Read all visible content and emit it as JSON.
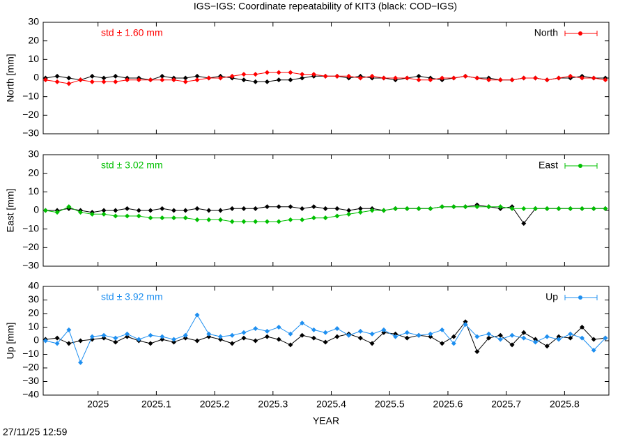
{
  "footer": "27/11/25 12:59",
  "chart_data": [
    {
      "type": "line",
      "title": "IGS−IGS: Coordinate repeatability of KIT3 (black: COD−IGS)",
      "ylabel": "North [mm]",
      "annotation": "std ± 1.60 mm",
      "legend": "top-right",
      "grid": false,
      "xlim": [
        2024.906,
        2025.876
      ],
      "xticks": [
        2025,
        2025.1,
        2025.2,
        2025.3,
        2025.4,
        2025.5,
        2025.6,
        2025.7,
        2025.8
      ],
      "ylim": [
        -30,
        30
      ],
      "yticks": [
        {
          "value": -30,
          "label": "−30"
        },
        {
          "value": -20,
          "label": "−20"
        },
        {
          "value": -10,
          "label": "−10"
        },
        0,
        10,
        20,
        30
      ],
      "x": [
        2024.91,
        2024.93,
        2024.95,
        2024.97,
        2024.99,
        2025.01,
        2025.03,
        2025.05,
        2025.07,
        2025.09,
        2025.11,
        2025.13,
        2025.15,
        2025.17,
        2025.19,
        2025.21,
        2025.23,
        2025.25,
        2025.27,
        2025.29,
        2025.31,
        2025.33,
        2025.35,
        2025.37,
        2025.39,
        2025.41,
        2025.43,
        2025.45,
        2025.47,
        2025.49,
        2025.51,
        2025.53,
        2025.55,
        2025.57,
        2025.59,
        2025.61,
        2025.63,
        2025.65,
        2025.67,
        2025.69,
        2025.71,
        2025.73,
        2025.75,
        2025.77,
        2025.79,
        2025.81,
        2025.83,
        2025.85,
        2025.87
      ],
      "series": [
        {
          "color": "#000000",
          "values": [
            0,
            1,
            0,
            -1,
            1,
            0,
            1,
            0,
            0,
            -1,
            1,
            0,
            0,
            1,
            0,
            1,
            0,
            -1,
            -2,
            -2,
            -1,
            -1,
            0,
            1,
            1,
            1,
            0,
            1,
            0,
            0,
            -1,
            0,
            1,
            0,
            -1,
            0,
            1,
            0,
            0,
            -1,
            -1,
            0,
            0,
            -1,
            0,
            0,
            1,
            0,
            0
          ]
        },
        {
          "name": "North",
          "color": "#ff0000",
          "values": [
            -1,
            -2,
            -3,
            -1,
            -2,
            -2,
            -2,
            -1,
            -1,
            -1,
            -1,
            -1,
            -2,
            -1,
            0,
            0,
            1,
            2,
            2,
            3,
            3,
            3,
            2,
            2,
            1,
            1,
            1,
            0,
            1,
            0,
            0,
            0,
            -1,
            -1,
            0,
            0,
            1,
            0,
            -1,
            -1,
            -1,
            0,
            0,
            -1,
            0,
            1,
            0,
            0,
            -1
          ]
        }
      ]
    },
    {
      "type": "line",
      "ylabel": "East [mm]",
      "annotation": "std ± 3.02 mm",
      "legend": "top-right",
      "grid": false,
      "xlim": [
        2024.906,
        2025.876
      ],
      "xticks": [
        2025,
        2025.1,
        2025.2,
        2025.3,
        2025.4,
        2025.5,
        2025.6,
        2025.7,
        2025.8
      ],
      "ylim": [
        -30,
        30
      ],
      "yticks": [
        {
          "value": -30,
          "label": "−30"
        },
        {
          "value": -20,
          "label": "−20"
        },
        {
          "value": -10,
          "label": "−10"
        },
        0,
        10,
        20,
        30
      ],
      "x": [
        2024.91,
        2024.93,
        2024.95,
        2024.97,
        2024.99,
        2025.01,
        2025.03,
        2025.05,
        2025.07,
        2025.09,
        2025.11,
        2025.13,
        2025.15,
        2025.17,
        2025.19,
        2025.21,
        2025.23,
        2025.25,
        2025.27,
        2025.29,
        2025.31,
        2025.33,
        2025.35,
        2025.37,
        2025.39,
        2025.41,
        2025.43,
        2025.45,
        2025.47,
        2025.49,
        2025.51,
        2025.53,
        2025.55,
        2025.57,
        2025.59,
        2025.61,
        2025.63,
        2025.65,
        2025.67,
        2025.69,
        2025.71,
        2025.73,
        2025.75,
        2025.77,
        2025.79,
        2025.81,
        2025.83,
        2025.85,
        2025.87
      ],
      "series": [
        {
          "color": "#000000",
          "values": [
            0,
            0,
            1,
            0,
            -1,
            0,
            0,
            1,
            0,
            0,
            1,
            0,
            0,
            1,
            0,
            0,
            1,
            1,
            1,
            2,
            2,
            2,
            1,
            2,
            1,
            1,
            0,
            1,
            1,
            0,
            1,
            1,
            1,
            1,
            2,
            2,
            2,
            3,
            2,
            1,
            2,
            -7,
            1,
            1,
            1,
            1,
            1,
            1,
            1
          ]
        },
        {
          "name": "East",
          "color": "#00c000",
          "values": [
            0,
            -1,
            2,
            -1,
            -2,
            -2,
            -3,
            -3,
            -3,
            -4,
            -4,
            -4,
            -4,
            -5,
            -5,
            -5,
            -6,
            -6,
            -6,
            -6,
            -6,
            -5,
            -5,
            -4,
            -4,
            -3,
            -2,
            -1,
            0,
            0,
            1,
            1,
            1,
            1,
            2,
            2,
            2,
            2,
            2,
            2,
            1,
            1,
            1,
            1,
            1,
            1,
            1,
            1,
            1
          ]
        }
      ]
    },
    {
      "type": "line",
      "ylabel": "Up [mm]",
      "xlabel": "YEAR",
      "annotation": "std ± 3.92 mm",
      "legend": "top-right",
      "grid": false,
      "xlim": [
        2024.906,
        2025.876
      ],
      "xticks": [
        2025,
        2025.1,
        2025.2,
        2025.3,
        2025.4,
        2025.5,
        2025.6,
        2025.7,
        2025.8
      ],
      "ylim": [
        -40,
        40
      ],
      "yticks": [
        {
          "value": -40,
          "label": "−40"
        },
        {
          "value": -30,
          "label": "−30"
        },
        {
          "value": -20,
          "label": "−20"
        },
        {
          "value": -10,
          "label": "−10"
        },
        0,
        10,
        20,
        30,
        40
      ],
      "x": [
        2024.91,
        2024.93,
        2024.95,
        2024.97,
        2024.99,
        2025.01,
        2025.03,
        2025.05,
        2025.07,
        2025.09,
        2025.11,
        2025.13,
        2025.15,
        2025.17,
        2025.19,
        2025.21,
        2025.23,
        2025.25,
        2025.27,
        2025.29,
        2025.31,
        2025.33,
        2025.35,
        2025.37,
        2025.39,
        2025.41,
        2025.43,
        2025.45,
        2025.47,
        2025.49,
        2025.51,
        2025.53,
        2025.55,
        2025.57,
        2025.59,
        2025.61,
        2025.63,
        2025.65,
        2025.67,
        2025.69,
        2025.71,
        2025.73,
        2025.75,
        2025.77,
        2025.79,
        2025.81,
        2025.83,
        2025.85,
        2025.87
      ],
      "series": [
        {
          "color": "#000000",
          "values": [
            1,
            2,
            -2,
            0,
            1,
            2,
            -1,
            3,
            0,
            -2,
            1,
            -1,
            2,
            0,
            3,
            1,
            -2,
            2,
            0,
            3,
            1,
            -3,
            4,
            2,
            -1,
            3,
            5,
            2,
            -2,
            6,
            5,
            2,
            4,
            3,
            -2,
            3,
            14,
            -8,
            2,
            4,
            -3,
            6,
            1,
            -4,
            3,
            2,
            10,
            1,
            2
          ]
        },
        {
          "name": "Up",
          "color": "#1e8ff0",
          "values": [
            0,
            -2,
            8,
            -16,
            3,
            4,
            2,
            5,
            1,
            4,
            3,
            1,
            4,
            19,
            5,
            3,
            4,
            6,
            9,
            7,
            10,
            5,
            13,
            8,
            6,
            9,
            4,
            7,
            5,
            8,
            3,
            6,
            4,
            5,
            8,
            -2,
            12,
            3,
            5,
            1,
            4,
            2,
            -1,
            3,
            1,
            5,
            2,
            -7,
            2
          ]
        }
      ]
    }
  ]
}
